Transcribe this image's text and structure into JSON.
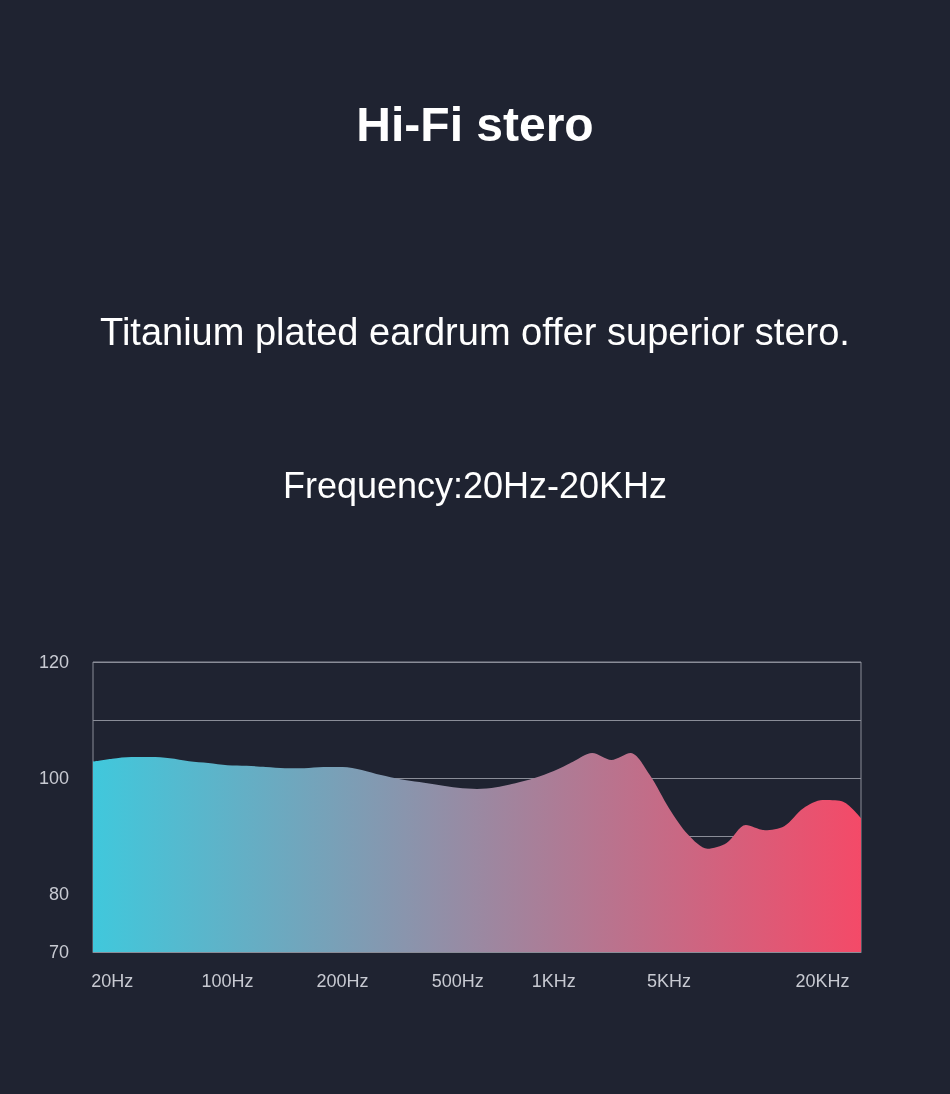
{
  "chart_data": {
    "type": "area",
    "title": "Hi-Fi stero",
    "subtitle": "Titanium plated eardrum offer superior stero.",
    "annotations": [
      "Frequency:20Hz-20KHz"
    ],
    "categories": [
      null,
      "20Hz",
      null,
      null,
      null,
      null,
      null,
      "100Hz",
      null,
      null,
      null,
      null,
      null,
      "200Hz",
      null,
      null,
      null,
      null,
      null,
      "500Hz",
      null,
      null,
      null,
      null,
      "1KHz",
      null,
      null,
      null,
      null,
      null,
      "5KHz",
      null,
      null,
      null,
      null,
      null,
      null,
      null,
      "20KHz",
      null,
      null
    ],
    "series": [
      {
        "color": "#40c8dc",
        "values": [
          102.8,
          103.3,
          103.6,
          103.6,
          103.4,
          102.9,
          102.6,
          102.2,
          102.1,
          101.9,
          101.7,
          101.7,
          101.9,
          101.9,
          101.4,
          100.5,
          99.8,
          99.3,
          98.8,
          98.3,
          98.1,
          98.4,
          99.1,
          100,
          101.2,
          102.8,
          104.3,
          103.1,
          104.3,
          100.5,
          94.8,
          90.2,
          87.8,
          88.8,
          91.9,
          91,
          91.7,
          94.8,
          96.2,
          96,
          93.1
        ]
      }
    ],
    "ylim": [
      70,
      120
    ],
    "yticks": [
      70,
      80,
      {
        "value": 90,
        "label": null
      },
      100,
      {
        "value": 110,
        "label": null
      },
      120
    ],
    "grid": "y"
  }
}
